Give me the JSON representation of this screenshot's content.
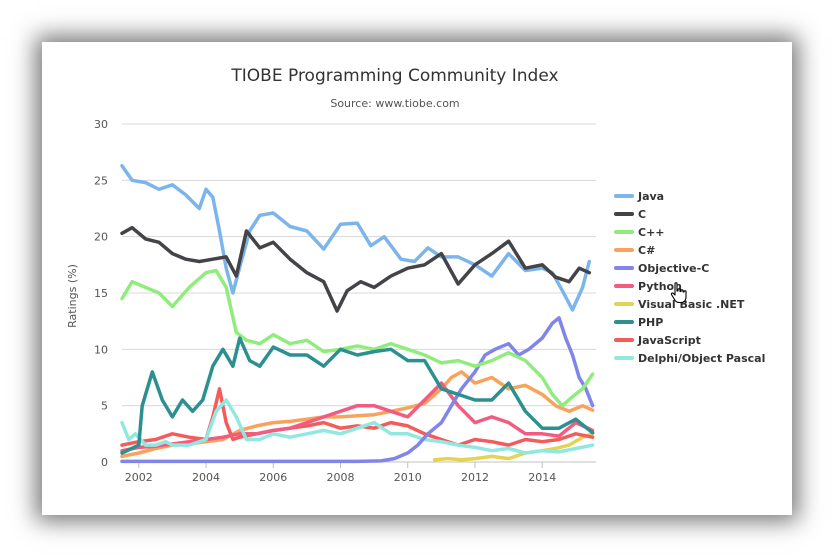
{
  "colors": {
    "grid": "#d8d8d8",
    "axis_text": "#555555",
    "title_text": "#333333"
  },
  "chart_data": {
    "type": "line",
    "title": "TIOBE Programming Community Index",
    "subtitle": "Source: www.tiobe.com",
    "xlabel": "",
    "ylabel": "Ratings (%)",
    "xlim": [
      2001.5,
      2015.6
    ],
    "ylim": [
      0,
      30
    ],
    "x_ticks": [
      "2002",
      "2004",
      "2006",
      "2008",
      "2010",
      "2012",
      "2014"
    ],
    "y_ticks": [
      "0",
      "5",
      "10",
      "15",
      "20",
      "25",
      "30"
    ],
    "grid": true,
    "legend_position": "right",
    "series": [
      {
        "name": "Java",
        "color": "#7cb5ec",
        "x": [
          2001.5,
          2001.8,
          2002.2,
          2002.6,
          2003.0,
          2003.4,
          2003.8,
          2004.0,
          2004.2,
          2004.4,
          2004.6,
          2004.8,
          2005.0,
          2005.3,
          2005.6,
          2006.0,
          2006.5,
          2007.0,
          2007.5,
          2008.0,
          2008.5,
          2008.9,
          2009.3,
          2009.8,
          2010.2,
          2010.6,
          2011.0,
          2011.5,
          2012.0,
          2012.5,
          2013.0,
          2013.5,
          2014.0,
          2014.3,
          2014.6,
          2014.9,
          2015.2,
          2015.4
        ],
        "y": [
          26.3,
          25,
          24.8,
          24.2,
          24.6,
          23.7,
          22.5,
          24.2,
          23.5,
          20.5,
          17.2,
          15.0,
          17.3,
          20.5,
          21.9,
          22.1,
          20.9,
          20.5,
          18.9,
          21.1,
          21.2,
          19.2,
          20.0,
          18.0,
          17.8,
          19.0,
          18.2,
          18.2,
          17.5,
          16.5,
          18.5,
          17.0,
          17.2,
          16.8,
          15.2,
          13.5,
          15.5,
          17.8
        ]
      },
      {
        "name": "C",
        "color": "#434348",
        "x": [
          2001.5,
          2001.8,
          2002.2,
          2002.6,
          2003.0,
          2003.4,
          2003.8,
          2004.2,
          2004.6,
          2004.9,
          2005.2,
          2005.6,
          2006.0,
          2006.5,
          2007.0,
          2007.5,
          2007.9,
          2008.2,
          2008.6,
          2009.0,
          2009.5,
          2010.0,
          2010.5,
          2011.0,
          2011.5,
          2012.0,
          2012.5,
          2013.0,
          2013.5,
          2014.0,
          2014.4,
          2014.8,
          2015.1,
          2015.4
        ],
        "y": [
          20.3,
          20.8,
          19.8,
          19.5,
          18.5,
          18.0,
          17.8,
          18.0,
          18.2,
          16.5,
          20.5,
          19.0,
          19.5,
          18.0,
          16.8,
          16.0,
          13.4,
          15.2,
          16.0,
          15.5,
          16.5,
          17.2,
          17.5,
          18.5,
          15.8,
          17.5,
          18.5,
          19.6,
          17.2,
          17.5,
          16.4,
          16.0,
          17.2,
          16.8
        ]
      },
      {
        "name": "C++",
        "color": "#90ed7d",
        "x": [
          2001.5,
          2001.8,
          2002.2,
          2002.6,
          2003.0,
          2003.5,
          2004.0,
          2004.3,
          2004.6,
          2004.9,
          2005.2,
          2005.6,
          2006.0,
          2006.5,
          2007.0,
          2007.5,
          2008.0,
          2008.5,
          2009.0,
          2009.5,
          2010.0,
          2010.5,
          2011.0,
          2011.5,
          2012.0,
          2012.5,
          2013.0,
          2013.5,
          2014.0,
          2014.3,
          2014.6,
          2014.9,
          2015.2,
          2015.5
        ],
        "y": [
          14.5,
          16.0,
          15.5,
          15.0,
          13.8,
          15.5,
          16.8,
          17.0,
          15.5,
          11.5,
          10.8,
          10.5,
          11.3,
          10.5,
          10.8,
          9.8,
          10.0,
          10.3,
          10.0,
          10.5,
          10.0,
          9.5,
          8.8,
          9.0,
          8.5,
          9.0,
          9.7,
          9.0,
          7.5,
          6.0,
          5.0,
          5.8,
          6.5,
          7.8
        ]
      },
      {
        "name": "C#",
        "color": "#f7a35c",
        "x": [
          2001.5,
          2002.0,
          2002.5,
          2003.0,
          2003.5,
          2004.0,
          2004.5,
          2005.0,
          2005.5,
          2006.0,
          2006.5,
          2007.0,
          2007.5,
          2008.0,
          2008.5,
          2009.0,
          2009.5,
          2010.0,
          2010.5,
          2011.0,
          2011.3,
          2011.6,
          2012.0,
          2012.5,
          2013.0,
          2013.5,
          2014.0,
          2014.4,
          2014.8,
          2015.2,
          2015.5
        ],
        "y": [
          0.5,
          0.8,
          1.2,
          1.5,
          1.6,
          1.8,
          2.0,
          2.8,
          3.2,
          3.5,
          3.6,
          3.8,
          4.0,
          4.0,
          4.1,
          4.2,
          4.5,
          4.8,
          5.2,
          6.5,
          7.5,
          8.0,
          7.0,
          7.5,
          6.5,
          6.8,
          6.0,
          5.0,
          4.5,
          5.0,
          4.6
        ]
      },
      {
        "name": "Objective-C",
        "color": "#8085e9",
        "x": [
          2001.5,
          2003.0,
          2005.0,
          2007.0,
          2008.5,
          2009.2,
          2009.6,
          2010.0,
          2010.3,
          2010.6,
          2011.0,
          2011.3,
          2011.6,
          2012.0,
          2012.3,
          2012.6,
          2013.0,
          2013.3,
          2013.6,
          2014.0,
          2014.3,
          2014.5,
          2014.7,
          2014.9,
          2015.1,
          2015.3,
          2015.5
        ],
        "y": [
          0.05,
          0.05,
          0.05,
          0.05,
          0.05,
          0.1,
          0.3,
          0.8,
          1.5,
          2.5,
          3.5,
          5.0,
          6.5,
          8.0,
          9.5,
          10.0,
          10.5,
          9.5,
          10.0,
          11.0,
          12.3,
          12.8,
          11.0,
          9.5,
          7.5,
          6.5,
          5.0
        ]
      },
      {
        "name": "Python",
        "color": "#f15c80",
        "x": [
          2001.5,
          2002.0,
          2002.5,
          2003.0,
          2003.5,
          2004.0,
          2004.5,
          2005.0,
          2005.5,
          2006.0,
          2006.5,
          2007.0,
          2007.5,
          2008.0,
          2008.5,
          2009.0,
          2009.5,
          2010.0,
          2010.5,
          2011.0,
          2011.5,
          2012.0,
          2012.5,
          2013.0,
          2013.5,
          2014.0,
          2014.5,
          2015.0,
          2015.5
        ],
        "y": [
          1.0,
          1.3,
          1.4,
          1.6,
          1.8,
          2.0,
          2.2,
          2.5,
          2.5,
          2.8,
          3.0,
          3.5,
          4.0,
          4.5,
          5.0,
          5.0,
          4.5,
          4.0,
          5.5,
          7.0,
          5.0,
          3.5,
          4.0,
          3.5,
          2.5,
          2.5,
          2.3,
          3.5,
          2.8
        ]
      },
      {
        "name": "Visual Basic .NET",
        "color": "#e4d354",
        "x": [
          2010.8,
          2011.2,
          2011.6,
          2012.0,
          2012.5,
          2013.0,
          2013.5,
          2014.0,
          2014.4,
          2014.8,
          2015.2,
          2015.5
        ],
        "y": [
          0.2,
          0.3,
          0.2,
          0.3,
          0.5,
          0.3,
          0.8,
          1.0,
          1.2,
          1.5,
          2.2,
          2.5
        ]
      },
      {
        "name": "PHP",
        "color": "#2b908f",
        "x": [
          2001.5,
          2002.0,
          2002.1,
          2002.4,
          2002.7,
          2003.0,
          2003.3,
          2003.6,
          2003.9,
          2004.2,
          2004.5,
          2004.8,
          2005.0,
          2005.3,
          2005.6,
          2006.0,
          2006.5,
          2007.0,
          2007.5,
          2008.0,
          2008.5,
          2009.0,
          2009.5,
          2010.0,
          2010.5,
          2011.0,
          2011.5,
          2012.0,
          2012.5,
          2013.0,
          2013.5,
          2014.0,
          2014.5,
          2015.0,
          2015.5
        ],
        "y": [
          0.8,
          1.5,
          5.0,
          8.0,
          5.5,
          4.0,
          5.5,
          4.5,
          5.5,
          8.5,
          10.0,
          8.5,
          11.0,
          9.0,
          8.5,
          10.2,
          9.5,
          9.5,
          8.5,
          10.0,
          9.5,
          9.8,
          10.0,
          9.0,
          9.0,
          6.5,
          6.0,
          5.5,
          5.5,
          7.0,
          4.5,
          3.0,
          3.0,
          3.8,
          2.6
        ]
      },
      {
        "name": "JavaScript",
        "color": "#f45b5b",
        "x": [
          2001.5,
          2002.0,
          2002.5,
          2003.0,
          2003.5,
          2004.0,
          2004.2,
          2004.4,
          2004.6,
          2004.8,
          2005.0,
          2005.5,
          2006.0,
          2006.5,
          2007.0,
          2007.5,
          2008.0,
          2008.5,
          2009.0,
          2009.5,
          2010.0,
          2010.5,
          2011.0,
          2011.5,
          2012.0,
          2012.5,
          2013.0,
          2013.5,
          2014.0,
          2014.5,
          2015.0,
          2015.5
        ],
        "y": [
          1.5,
          1.8,
          2.0,
          2.5,
          2.2,
          2.0,
          4.0,
          6.5,
          3.5,
          2.0,
          2.2,
          2.5,
          2.8,
          3.0,
          3.2,
          3.5,
          3.0,
          3.2,
          3.0,
          3.5,
          3.2,
          2.5,
          2.0,
          1.5,
          2.0,
          1.8,
          1.5,
          2.0,
          1.8,
          2.0,
          2.5,
          2.2
        ]
      },
      {
        "name": "Delphi/Object Pascal",
        "color": "#91e8e1",
        "x": [
          2001.5,
          2001.7,
          2001.9,
          2002.2,
          2002.5,
          2002.8,
          2003.0,
          2003.5,
          2004.0,
          2004.3,
          2004.6,
          2004.9,
          2005.2,
          2005.6,
          2006.0,
          2006.5,
          2007.0,
          2007.5,
          2008.0,
          2008.5,
          2009.0,
          2009.5,
          2010.0,
          2010.5,
          2011.0,
          2011.5,
          2012.0,
          2012.5,
          2013.0,
          2013.5,
          2014.0,
          2014.5,
          2015.0,
          2015.5
        ],
        "y": [
          3.5,
          2.0,
          2.5,
          1.5,
          1.5,
          1.8,
          1.5,
          1.5,
          2.0,
          4.5,
          5.5,
          4.0,
          2.0,
          2.0,
          2.5,
          2.2,
          2.5,
          2.8,
          2.5,
          3.0,
          3.5,
          2.5,
          2.5,
          2.0,
          1.8,
          1.5,
          1.3,
          1.0,
          1.2,
          0.8,
          1.0,
          0.9,
          1.2,
          1.5
        ]
      }
    ]
  }
}
